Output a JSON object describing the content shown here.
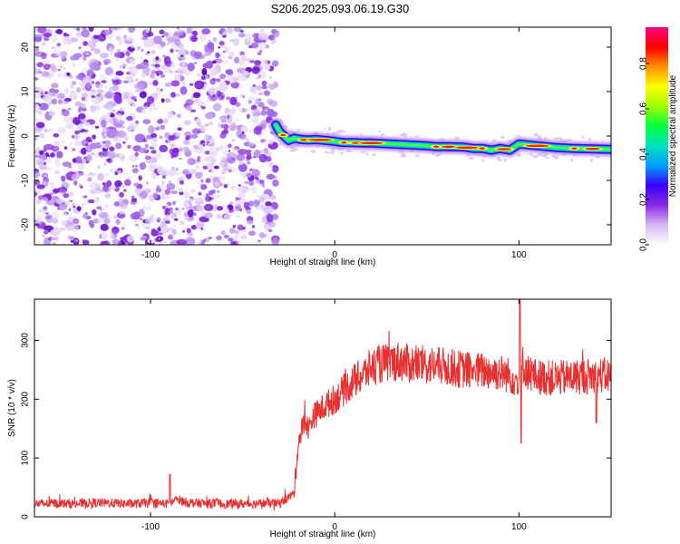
{
  "figure_title": "S206.2025.093.06.19.G30",
  "chart_data": [
    {
      "type": "heatmap",
      "xlabel": "Height of straight line (km)",
      "ylabel": "Frequency (Hz)",
      "xlim": [
        -163,
        150
      ],
      "ylim": [
        -24.5,
        24.5
      ],
      "xticks": [
        "-100",
        "0",
        "100"
      ],
      "xtick_values": [
        -100,
        0,
        100
      ],
      "yticks": [
        "20",
        "10",
        "0",
        "-10",
        "-20"
      ],
      "ytick_values": [
        20,
        10,
        0,
        -10,
        -20
      ],
      "noise_region_x": [
        -163,
        -32
      ],
      "ridge": {
        "x": [
          -32,
          -30,
          -28,
          -25,
          -22,
          -18,
          -14,
          -10,
          -5,
          0,
          5,
          10,
          15,
          20,
          30,
          40,
          50,
          55,
          60,
          70,
          75,
          80,
          85,
          90,
          95,
          100,
          110,
          120,
          130,
          140,
          150
        ],
        "frequency": [
          2.5,
          1.0,
          0.2,
          -1.0,
          -0.5,
          -0.8,
          -0.9,
          -0.8,
          -1.0,
          -1.2,
          -1.5,
          -1.5,
          -1.6,
          -1.6,
          -1.8,
          -2.0,
          -2.2,
          -2.4,
          -2.4,
          -2.5,
          -2.8,
          -2.8,
          -3.2,
          -2.8,
          -3.2,
          -1.8,
          -2.2,
          -2.6,
          -2.8,
          -2.9,
          -3.0
        ]
      },
      "colorbar": {
        "label": "Normalized spectral amplitude",
        "ticks": [
          "0.0",
          "0.2",
          "0.4",
          "0.6",
          "0.8"
        ],
        "tick_values": [
          0.0,
          0.2,
          0.4,
          0.6,
          0.8
        ],
        "range": [
          0,
          0.96
        ],
        "colors": [
          "#ffffff",
          "#d6b8f5",
          "#8a2be2",
          "#3a00ff",
          "#00a0ff",
          "#00e0c0",
          "#00ff40",
          "#a0ff00",
          "#ffff00",
          "#ff9000",
          "#ff0000",
          "#ff0080"
        ]
      },
      "noise_color": "#8a2be2"
    },
    {
      "type": "line",
      "xlabel": "Height of straight line (km)",
      "ylabel": "SNR (10 * v/v)",
      "xlim": [
        -163,
        150
      ],
      "ylim": [
        0,
        370
      ],
      "xticks": [
        "-100",
        "0",
        "100"
      ],
      "xtick_values": [
        -100,
        0,
        100
      ],
      "yticks": [
        "300",
        "200",
        "100",
        "0"
      ],
      "ytick_values": [
        300,
        200,
        100,
        0
      ],
      "line_color": "#e83030",
      "series": [
        {
          "x": [
            -163,
            -150,
            -140,
            -130,
            -120,
            -110,
            -100,
            -90,
            -85,
            -80,
            -70,
            -60,
            -50,
            -40,
            -30,
            -22,
            -20,
            -18,
            -16,
            -14,
            -12,
            -10,
            -5,
            0,
            5,
            10,
            15,
            20,
            25,
            30,
            35,
            40,
            50,
            60,
            70,
            80,
            90,
            95,
            100,
            102,
            105,
            110,
            120,
            130,
            140,
            150
          ],
          "values": [
            22,
            23,
            22,
            24,
            23,
            22,
            24,
            22,
            30,
            24,
            23,
            22,
            22,
            23,
            23,
            40,
            120,
            150,
            160,
            150,
            170,
            175,
            190,
            200,
            215,
            230,
            240,
            255,
            260,
            262,
            265,
            260,
            258,
            255,
            250,
            248,
            245,
            240,
            230,
            260,
            245,
            238,
            235,
            238,
            240,
            240
          ]
        }
      ]
    }
  ]
}
